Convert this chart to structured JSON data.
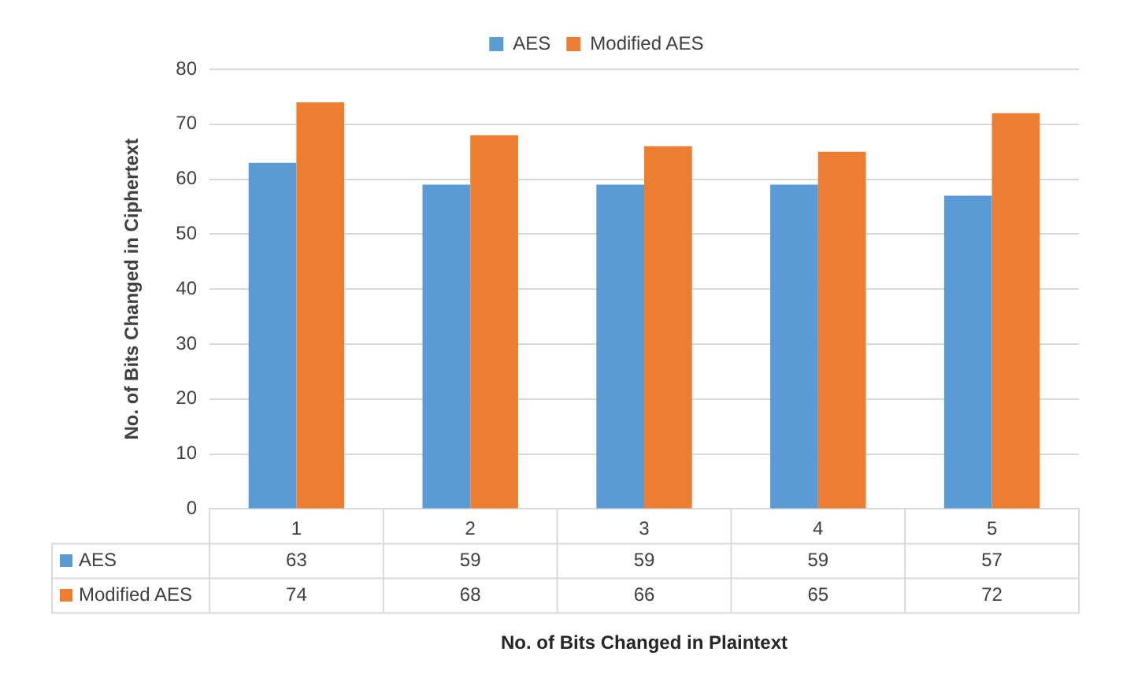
{
  "chart_data": {
    "type": "bar",
    "xlabel": "No. of Bits Changed in Plaintext",
    "ylabel": "No. of Bits Changed in Ciphertext",
    "categories": [
      "1",
      "2",
      "3",
      "4",
      "5"
    ],
    "series": [
      {
        "name": "AES",
        "color": "#5b9bd5",
        "values": [
          63,
          59,
          59,
          59,
          57
        ]
      },
      {
        "name": "Modified AES",
        "color": "#ed7d31",
        "values": [
          74,
          68,
          66,
          65,
          72
        ]
      }
    ],
    "ylim": [
      0,
      80
    ],
    "yticks": [
      0,
      10,
      20,
      30,
      40,
      50,
      60,
      70,
      80
    ],
    "grid": "y",
    "legend": "top",
    "data_labels": true
  }
}
